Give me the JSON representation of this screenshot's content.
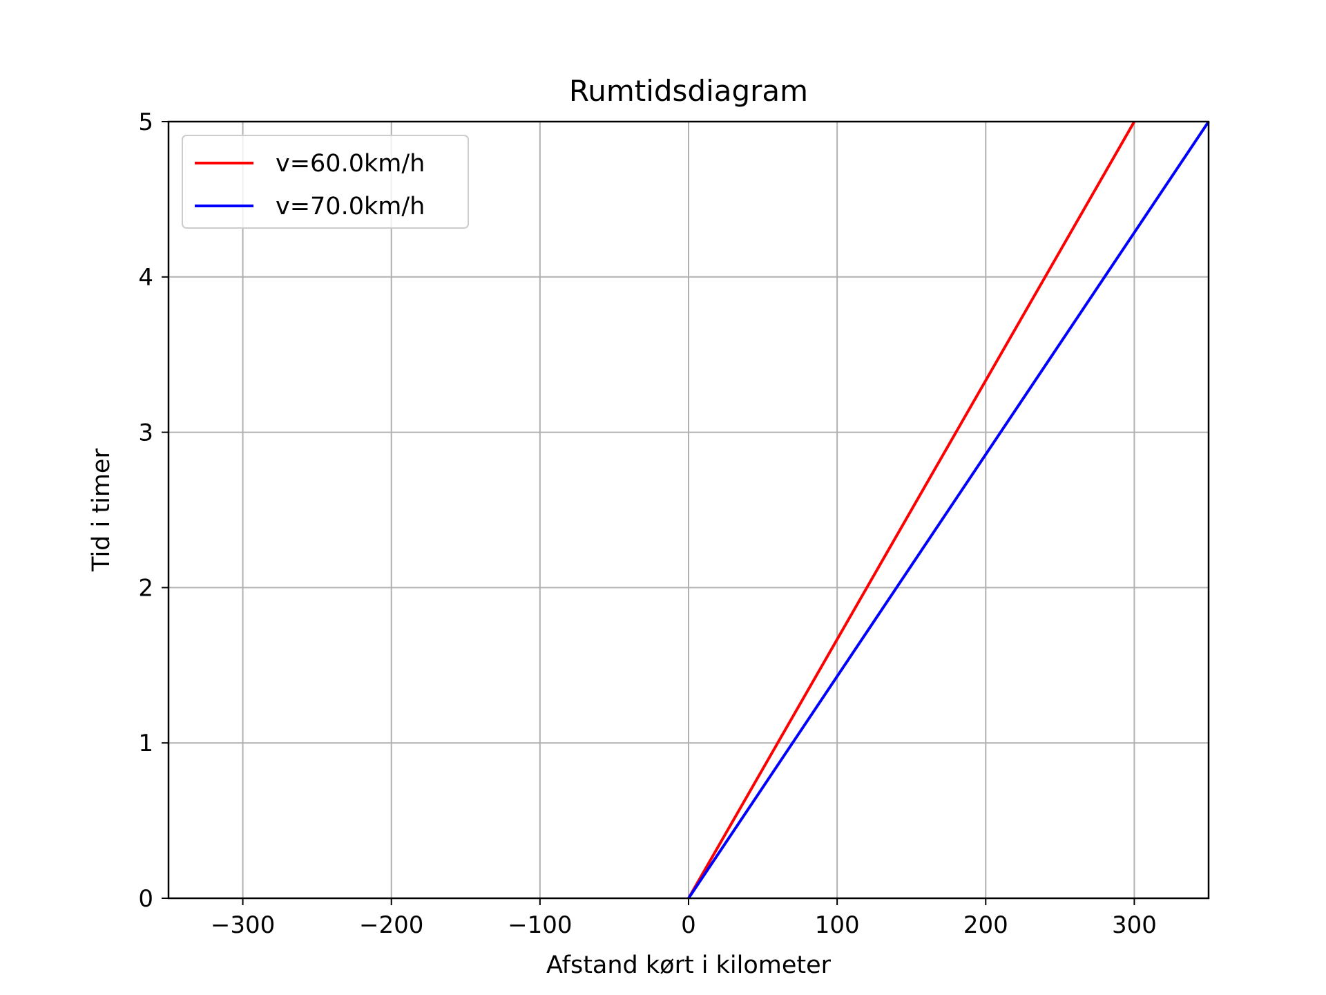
{
  "chart_data": {
    "type": "line",
    "title": "Rumtidsdiagram",
    "xlabel": "Afstand kørt i kilometer",
    "ylabel": "Tid i timer",
    "xlim": [
      -350,
      350
    ],
    "ylim": [
      0,
      5
    ],
    "xticks": [
      -300,
      -200,
      -100,
      0,
      100,
      200,
      300
    ],
    "xtick_labels": [
      "−300",
      "−200",
      "−100",
      "0",
      "100",
      "200",
      "300"
    ],
    "yticks": [
      0,
      1,
      2,
      3,
      4,
      5
    ],
    "ytick_labels": [
      "0",
      "1",
      "2",
      "3",
      "4",
      "5"
    ],
    "grid": true,
    "legend_position": "top-left",
    "series": [
      {
        "name": "v=60.0km/h",
        "color": "#ff0000",
        "x": [
          0,
          300
        ],
        "y": [
          0,
          5
        ]
      },
      {
        "name": "v=70.0km/h",
        "color": "#0000ff",
        "x": [
          0,
          350
        ],
        "y": [
          0,
          5
        ]
      }
    ]
  }
}
